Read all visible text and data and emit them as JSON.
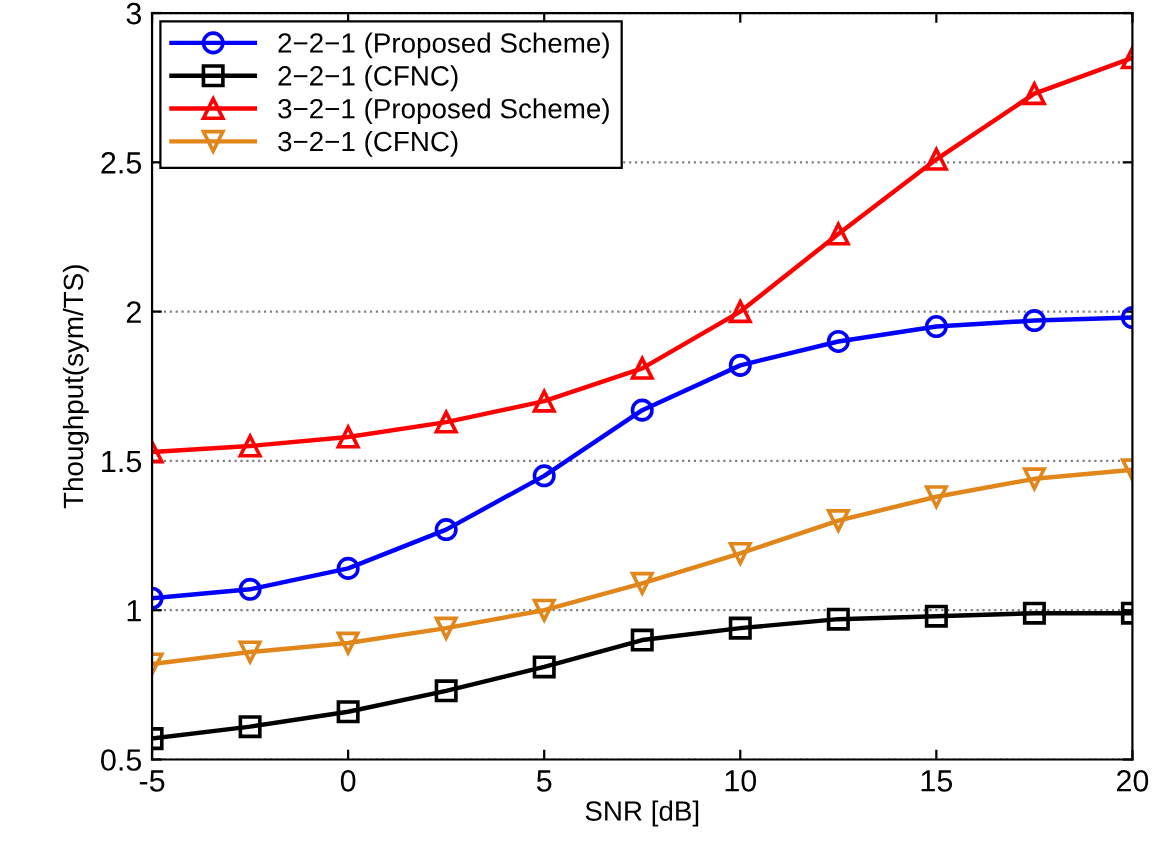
{
  "chart_data": {
    "type": "line",
    "xlabel": "SNR [dB]",
    "ylabel": "Thoughput(sym/TS)",
    "x": [
      -5,
      -2.5,
      0,
      2.5,
      5,
      7.5,
      10,
      12.5,
      15,
      17.5,
      20
    ],
    "series": [
      {
        "name": "2−2−1 (Proposed Scheme)",
        "color": "#0000ff",
        "marker": "circle",
        "values": [
          1.04,
          1.07,
          1.14,
          1.27,
          1.45,
          1.67,
          1.82,
          1.9,
          1.95,
          1.97,
          1.98
        ]
      },
      {
        "name": "2−2−1 (CFNC)",
        "color": "#000000",
        "marker": "square",
        "values": [
          0.57,
          0.61,
          0.66,
          0.73,
          0.81,
          0.9,
          0.94,
          0.97,
          0.98,
          0.99,
          0.99
        ]
      },
      {
        "name": "3−2−1 (Proposed Scheme)",
        "color": "#ff0000",
        "marker": "triangle",
        "values": [
          1.53,
          1.55,
          1.58,
          1.63,
          1.7,
          1.81,
          2.0,
          2.26,
          2.51,
          2.73,
          2.85
        ]
      },
      {
        "name": "3−2−1 (CFNC)",
        "color": "#e0861a",
        "marker": "triangle_down",
        "values": [
          0.82,
          0.86,
          0.89,
          0.94,
          1.0,
          1.09,
          1.19,
          1.3,
          1.38,
          1.44,
          1.47
        ]
      }
    ],
    "xlim": [
      -5,
      20
    ],
    "xticks": [
      -5,
      0,
      5,
      10,
      15,
      20
    ],
    "ylim": [
      0.5,
      3
    ],
    "yticks": [
      0.5,
      1,
      1.5,
      2,
      2.5,
      3
    ],
    "grid": "y",
    "legend": "top left",
    "line_style": "solid"
  }
}
